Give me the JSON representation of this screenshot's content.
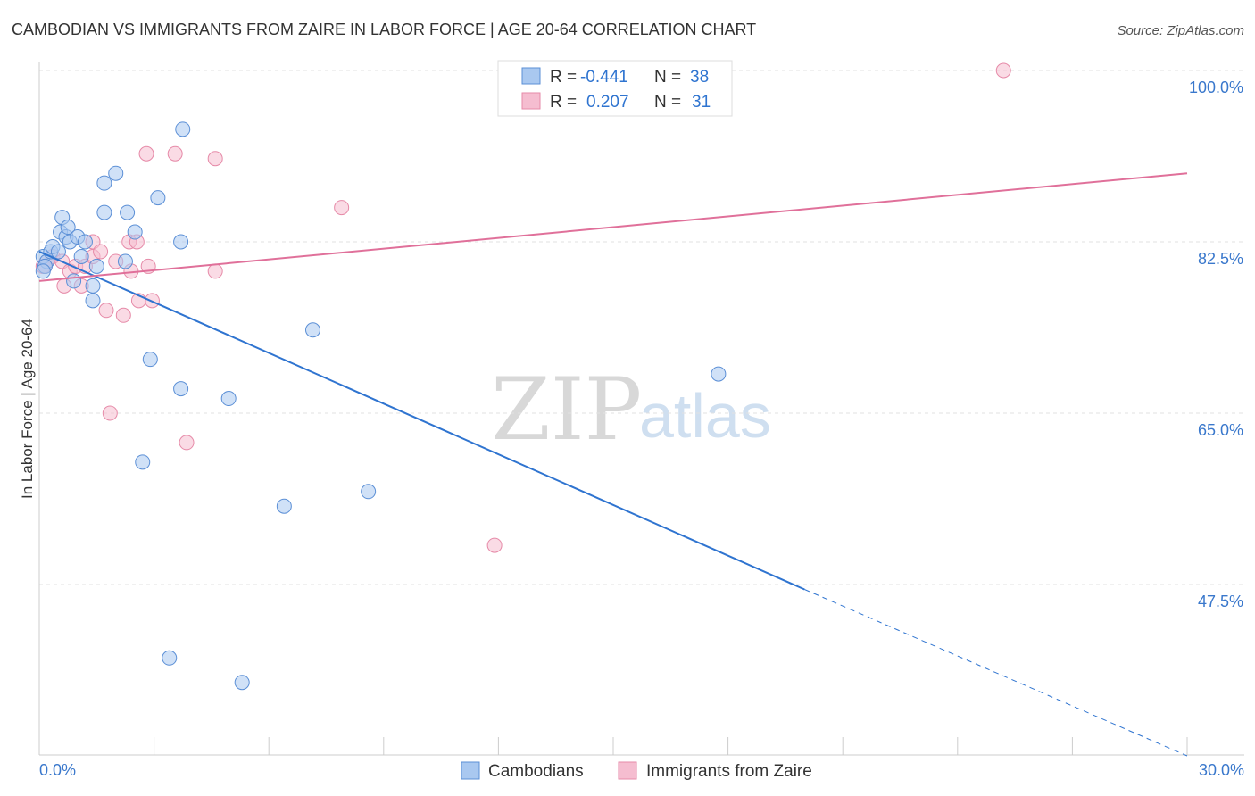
{
  "chart_data": {
    "type": "scatter",
    "title": "CAMBODIAN VS IMMIGRANTS FROM ZAIRE IN LABOR FORCE | AGE 20-64 CORRELATION CHART",
    "source": "Source: ZipAtlas.com",
    "xlabel": "",
    "ylabel": "In Labor Force | Age 20-64",
    "xlim": [
      0,
      30
    ],
    "ylim": [
      30,
      102
    ],
    "x_tick_labels": [
      "0.0%",
      "30.0%"
    ],
    "y_ticks": [
      47.5,
      65.0,
      82.5,
      100.0
    ],
    "y_tick_labels": [
      "47.5%",
      "65.0%",
      "82.5%",
      "100.0%"
    ],
    "watermark": {
      "zip": "ZIP",
      "atlas": "atlas"
    },
    "legend": {
      "r_label": "R =",
      "n_label": "N =",
      "entries": [
        {
          "r": "-0.441",
          "n": "38"
        },
        {
          "r": "0.207",
          "n": "31"
        }
      ]
    },
    "colors": {
      "cambodians_fill": "#a9c8f0",
      "cambodians_stroke": "#5b8fd6",
      "cambodians_line": "#2f74d0",
      "zaire_fill": "#f5bdd0",
      "zaire_stroke": "#e68aa8",
      "zaire_line": "#e0709a",
      "tick_blue": "#3a78cc"
    },
    "series": [
      {
        "name": "Cambodians",
        "trend": {
          "x0": 0,
          "y0": 81.5,
          "x1": 20,
          "y1": 47.0,
          "dash_to_x": 30,
          "dash_to_y": 30.0
        },
        "points": [
          [
            0.1,
            81.0
          ],
          [
            0.2,
            80.5
          ],
          [
            0.3,
            81.5
          ],
          [
            0.35,
            82.0
          ],
          [
            0.5,
            81.5
          ],
          [
            0.6,
            85.0
          ],
          [
            0.55,
            83.5
          ],
          [
            0.7,
            83.0
          ],
          [
            0.75,
            84.0
          ],
          [
            0.8,
            82.5
          ],
          [
            1.0,
            83.0
          ],
          [
            1.2,
            82.5
          ],
          [
            1.1,
            81.0
          ],
          [
            0.9,
            78.5
          ],
          [
            1.5,
            80.0
          ],
          [
            1.4,
            78.0
          ],
          [
            1.4,
            76.5
          ],
          [
            1.7,
            88.5
          ],
          [
            2.0,
            89.5
          ],
          [
            1.7,
            85.5
          ],
          [
            2.3,
            85.5
          ],
          [
            2.25,
            80.5
          ],
          [
            2.5,
            83.5
          ],
          [
            3.1,
            87.0
          ],
          [
            3.75,
            94.0
          ],
          [
            3.7,
            82.5
          ],
          [
            2.9,
            70.5
          ],
          [
            3.7,
            67.5
          ],
          [
            4.95,
            66.5
          ],
          [
            7.15,
            73.5
          ],
          [
            2.7,
            60.0
          ],
          [
            6.4,
            55.5
          ],
          [
            8.6,
            57.0
          ],
          [
            17.75,
            69.0
          ],
          [
            3.4,
            40.0
          ],
          [
            5.3,
            37.5
          ],
          [
            0.15,
            80.0
          ],
          [
            0.1,
            79.5
          ]
        ]
      },
      {
        "name": "Immigrants from Zaire",
        "trend": {
          "x0": 0,
          "y0": 78.5,
          "x1": 30,
          "y1": 89.5
        },
        "points": [
          [
            0.1,
            80.0
          ],
          [
            0.2,
            80.5
          ],
          [
            0.35,
            81.0
          ],
          [
            0.6,
            80.5
          ],
          [
            0.65,
            78.0
          ],
          [
            0.8,
            79.5
          ],
          [
            0.95,
            80.0
          ],
          [
            1.1,
            78.0
          ],
          [
            1.2,
            80.0
          ],
          [
            1.4,
            81.0
          ],
          [
            1.4,
            82.5
          ],
          [
            1.6,
            81.5
          ],
          [
            1.75,
            75.5
          ],
          [
            2.0,
            80.5
          ],
          [
            2.2,
            75.0
          ],
          [
            2.35,
            82.5
          ],
          [
            2.55,
            82.5
          ],
          [
            2.4,
            79.5
          ],
          [
            2.6,
            76.5
          ],
          [
            2.95,
            76.5
          ],
          [
            2.85,
            80.0
          ],
          [
            2.8,
            91.5
          ],
          [
            3.55,
            91.5
          ],
          [
            4.6,
            91.0
          ],
          [
            4.6,
            79.5
          ],
          [
            7.9,
            86.0
          ],
          [
            1.85,
            65.0
          ],
          [
            3.85,
            62.0
          ],
          [
            11.9,
            51.5
          ],
          [
            25.2,
            100.0
          ],
          [
            0.15,
            80.0
          ]
        ]
      }
    ]
  },
  "bottom_legend": [
    {
      "label": "Cambodians"
    },
    {
      "label": "Immigrants from Zaire"
    }
  ]
}
